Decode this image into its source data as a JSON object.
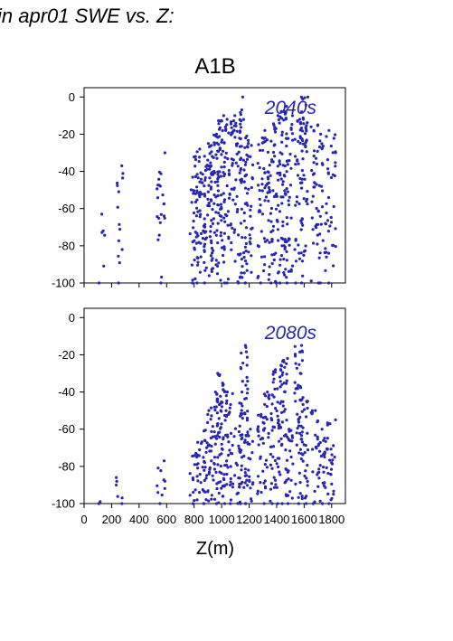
{
  "figure": {
    "title": "in apr01 SWE vs. Z:",
    "scenario": "A1B",
    "xlabel": "Z(m)"
  },
  "chart_data": [
    {
      "type": "scatter",
      "annotation": "2040s",
      "color": "#2626b3",
      "xlim": [
        0,
        1900
      ],
      "ylim": [
        -100,
        5
      ],
      "xticks": [
        0,
        200,
        400,
        600,
        800,
        1000,
        1200,
        1400,
        1600,
        1800
      ],
      "yticks": [
        0,
        -20,
        -40,
        -60,
        -80,
        -100
      ],
      "xtick_labels_shown": false,
      "columns": [
        {
          "x": 120,
          "min": -100,
          "max": -63,
          "n": 6
        },
        {
          "x": 260,
          "min": -100,
          "max": -37,
          "n": 14
        },
        {
          "x": 560,
          "min": -100,
          "max": -30,
          "n": 22
        },
        {
          "x": 800,
          "min": -100,
          "max": -32,
          "n": 40
        },
        {
          "x": 850,
          "min": -100,
          "max": -28,
          "n": 40
        },
        {
          "x": 900,
          "min": -100,
          "max": -25,
          "n": 45
        },
        {
          "x": 950,
          "min": -95,
          "max": -20,
          "n": 50
        },
        {
          "x": 1000,
          "min": -100,
          "max": -10,
          "n": 70
        },
        {
          "x": 1060,
          "min": -100,
          "max": -12,
          "n": 40
        },
        {
          "x": 1120,
          "min": -100,
          "max": -10,
          "n": 40
        },
        {
          "x": 1160,
          "min": -100,
          "max": 0,
          "n": 45
        },
        {
          "x": 1200,
          "min": -100,
          "max": -22,
          "n": 35
        },
        {
          "x": 1290,
          "min": -100,
          "max": -22,
          "n": 35
        },
        {
          "x": 1340,
          "min": -100,
          "max": -18,
          "n": 35
        },
        {
          "x": 1390,
          "min": -100,
          "max": -10,
          "n": 45
        },
        {
          "x": 1450,
          "min": -100,
          "max": -5,
          "n": 55
        },
        {
          "x": 1490,
          "min": -100,
          "max": -10,
          "n": 40
        },
        {
          "x": 1560,
          "min": -100,
          "max": -12,
          "n": 35
        },
        {
          "x": 1600,
          "min": -100,
          "max": 0,
          "n": 50
        },
        {
          "x": 1680,
          "min": -100,
          "max": -15,
          "n": 35
        },
        {
          "x": 1740,
          "min": -100,
          "max": -20,
          "n": 30
        },
        {
          "x": 1800,
          "min": -100,
          "max": -18,
          "n": 30
        }
      ]
    },
    {
      "type": "scatter",
      "annotation": "2080s",
      "color": "#2626b3",
      "xlim": [
        0,
        1900
      ],
      "ylim": [
        -100,
        5
      ],
      "xticks": [
        0,
        200,
        400,
        600,
        800,
        1000,
        1200,
        1400,
        1600,
        1800
      ],
      "xtick_labels": [
        "0",
        "200",
        "400",
        "600",
        "800",
        "1000",
        "1200",
        "1400",
        "1600",
        "1800"
      ],
      "yticks": [
        0,
        -20,
        -40,
        -60,
        -80,
        -100
      ],
      "columns": [
        {
          "x": 120,
          "min": -100,
          "max": -99,
          "n": 2
        },
        {
          "x": 260,
          "min": -100,
          "max": -86,
          "n": 6
        },
        {
          "x": 560,
          "min": -100,
          "max": -77,
          "n": 10
        },
        {
          "x": 800,
          "min": -100,
          "max": -73,
          "n": 16
        },
        {
          "x": 850,
          "min": -100,
          "max": -66,
          "n": 20
        },
        {
          "x": 900,
          "min": -100,
          "max": -50,
          "n": 35
        },
        {
          "x": 950,
          "min": -100,
          "max": -40,
          "n": 40
        },
        {
          "x": 1000,
          "min": -100,
          "max": -30,
          "n": 55
        },
        {
          "x": 1060,
          "min": -100,
          "max": -40,
          "n": 35
        },
        {
          "x": 1120,
          "min": -100,
          "max": -40,
          "n": 30
        },
        {
          "x": 1160,
          "min": -100,
          "max": -15,
          "n": 45
        },
        {
          "x": 1200,
          "min": -100,
          "max": -60,
          "n": 25
        },
        {
          "x": 1290,
          "min": -100,
          "max": -52,
          "n": 30
        },
        {
          "x": 1340,
          "min": -100,
          "max": -40,
          "n": 30
        },
        {
          "x": 1390,
          "min": -100,
          "max": -28,
          "n": 40
        },
        {
          "x": 1450,
          "min": -100,
          "max": -22,
          "n": 45
        },
        {
          "x": 1490,
          "min": -100,
          "max": -60,
          "n": 25
        },
        {
          "x": 1560,
          "min": -100,
          "max": -15,
          "n": 45
        },
        {
          "x": 1600,
          "min": -100,
          "max": -43,
          "n": 35
        },
        {
          "x": 1680,
          "min": -100,
          "max": -50,
          "n": 25
        },
        {
          "x": 1740,
          "min": -100,
          "max": -60,
          "n": 25
        },
        {
          "x": 1800,
          "min": -100,
          "max": -55,
          "n": 25
        }
      ]
    }
  ]
}
